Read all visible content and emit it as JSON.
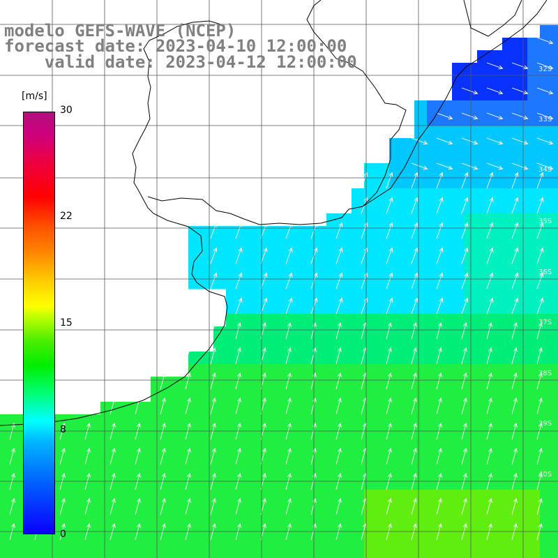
{
  "title": {
    "model": "modelo GEFS-WAVE (NCEP)",
    "forecast": "forecast date: 2023-04-10 12:00:00",
    "valid": "    valid date: 2023-04-12 12:00:00"
  },
  "colorbar": {
    "unit": "[m/s]",
    "ticks": [
      "30",
      "22",
      "15",
      "8",
      "0"
    ],
    "range": [
      0,
      30
    ],
    "colors": [
      "#0a00ff",
      "#0060ff",
      "#00b8ff",
      "#00ffff",
      "#00ff7a",
      "#00ee00",
      "#50ee00",
      "#ccff00",
      "#ffff00",
      "#ffcc00",
      "#ff8c00",
      "#ff5000",
      "#ff0000",
      "#ee0040",
      "#cc0080",
      "#b0107a"
    ]
  },
  "lat_labels": [
    "32S",
    "33S",
    "34S",
    "35S",
    "36S",
    "37S",
    "38S",
    "39S",
    "40S"
  ],
  "wind_arrows": "white"
}
